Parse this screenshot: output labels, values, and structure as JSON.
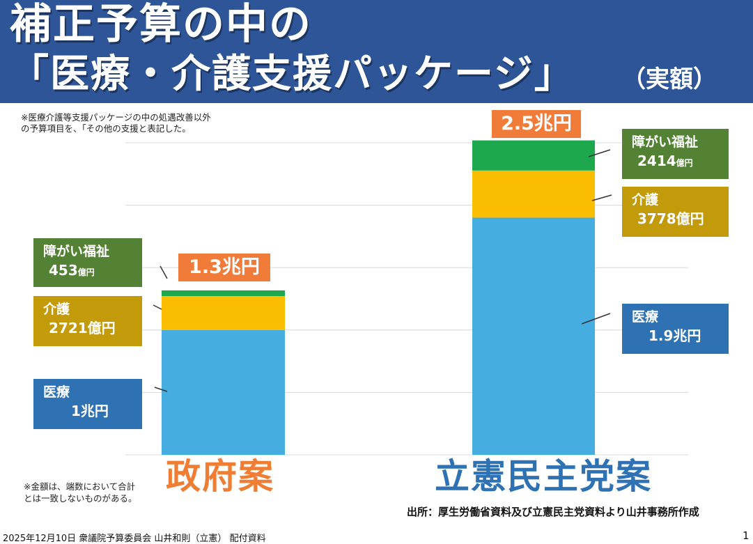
{
  "header": {
    "title_line1": "補正予算の中の",
    "title_line2": "「医療・介護支援パッケージ」",
    "title_sub": "（実額）"
  },
  "note_top": "※医療介護等支援パッケージの中の処遇改善以外\n の予算項目を、「その他の支援と表記した。",
  "note_bottom": "※金額は、端数において合計\n とは一致しないものがある。",
  "source": "出所：厚生労働省資料及び立憲民主党資料より山井事務所作成",
  "footer": "2025年12月10日  衆議院予算委員会 山井和則（立憲） 配付資料",
  "page_number": "1",
  "colors": {
    "header_bg": "#2e5597",
    "iryo": "#45ade0",
    "kaigo": "#fbbd00",
    "shogai": "#1ea84e",
    "iryo_label": "#2f72b3",
    "kaigo_label": "#c39a0a",
    "shogai_label": "#548235",
    "total_box": "#f17c3a",
    "gov_label": "#ef7d33",
    "cdp_label": "#2f72b3",
    "grid": "#d8d8d8"
  },
  "chart_data": {
    "type": "bar",
    "stacked": true,
    "unit": "億円",
    "categories": [
      "政府案",
      "立憲民主党案"
    ],
    "series": [
      {
        "name": "医療",
        "values": [
          10000,
          19000
        ],
        "labels": [
          "1兆円",
          "1.9兆円"
        ]
      },
      {
        "name": "介護",
        "values": [
          2721,
          3778
        ],
        "labels": [
          "2721億円",
          "3778億円"
        ]
      },
      {
        "name": "障がい福祉",
        "values": [
          453,
          2414
        ],
        "labels": [
          "453億円",
          "2414億円"
        ]
      }
    ],
    "totals": [
      "1.3兆円",
      "2.5兆円"
    ],
    "ylim": [
      0,
      25000
    ],
    "grid": true
  },
  "labels": {
    "gov": {
      "shogai": {
        "cat": "障がい福祉",
        "amt_num": "453",
        "amt_unit": "億円"
      },
      "kaigo": {
        "cat": "介護",
        "amt": "2721億円"
      },
      "iryo": {
        "cat": "医療",
        "amt": "1兆円"
      }
    },
    "cdp": {
      "shogai": {
        "cat": "障がい福祉",
        "amt_num": "2414",
        "amt_unit": "億円"
      },
      "kaigo": {
        "cat": "介護",
        "amt": "3778億円"
      },
      "iryo": {
        "cat": "医療",
        "amt": "1.9兆円"
      }
    }
  }
}
